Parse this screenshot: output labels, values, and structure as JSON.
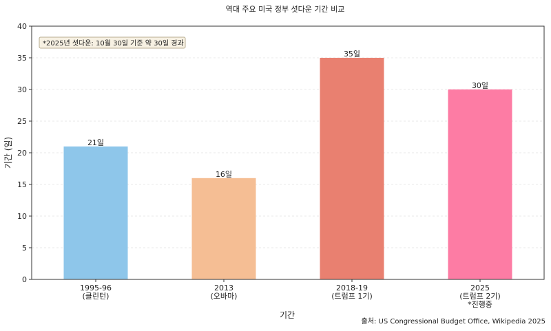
{
  "chart_data": {
    "type": "bar",
    "title": "역대 주요 미국 정부 셧다운 기간 비교",
    "xlabel": "기간",
    "ylabel": "기간 (일)",
    "ylim": [
      0,
      40
    ],
    "yticks": [
      0,
      5,
      10,
      15,
      20,
      25,
      30,
      35,
      40
    ],
    "categories": [
      [
        "1995-96",
        "(클린턴)"
      ],
      [
        "2013",
        "(오바마)"
      ],
      [
        "2018-19",
        "(트럼프 1기)"
      ],
      [
        "2025",
        "(트럼프 2기)",
        "*진행중"
      ]
    ],
    "values": [
      21,
      16,
      35,
      30
    ],
    "value_labels": [
      "21일",
      "16일",
      "35일",
      "30일"
    ],
    "colors": [
      "#8ec6ea",
      "#f5be94",
      "#e98070",
      "#fd7ca4"
    ],
    "grid": "horizontal",
    "annotation": "*2025년 셧다운: 10월 30일 기준 약 30일 경과",
    "source": "출처: US Congressional Budget Office, Wikipedia 2025"
  }
}
